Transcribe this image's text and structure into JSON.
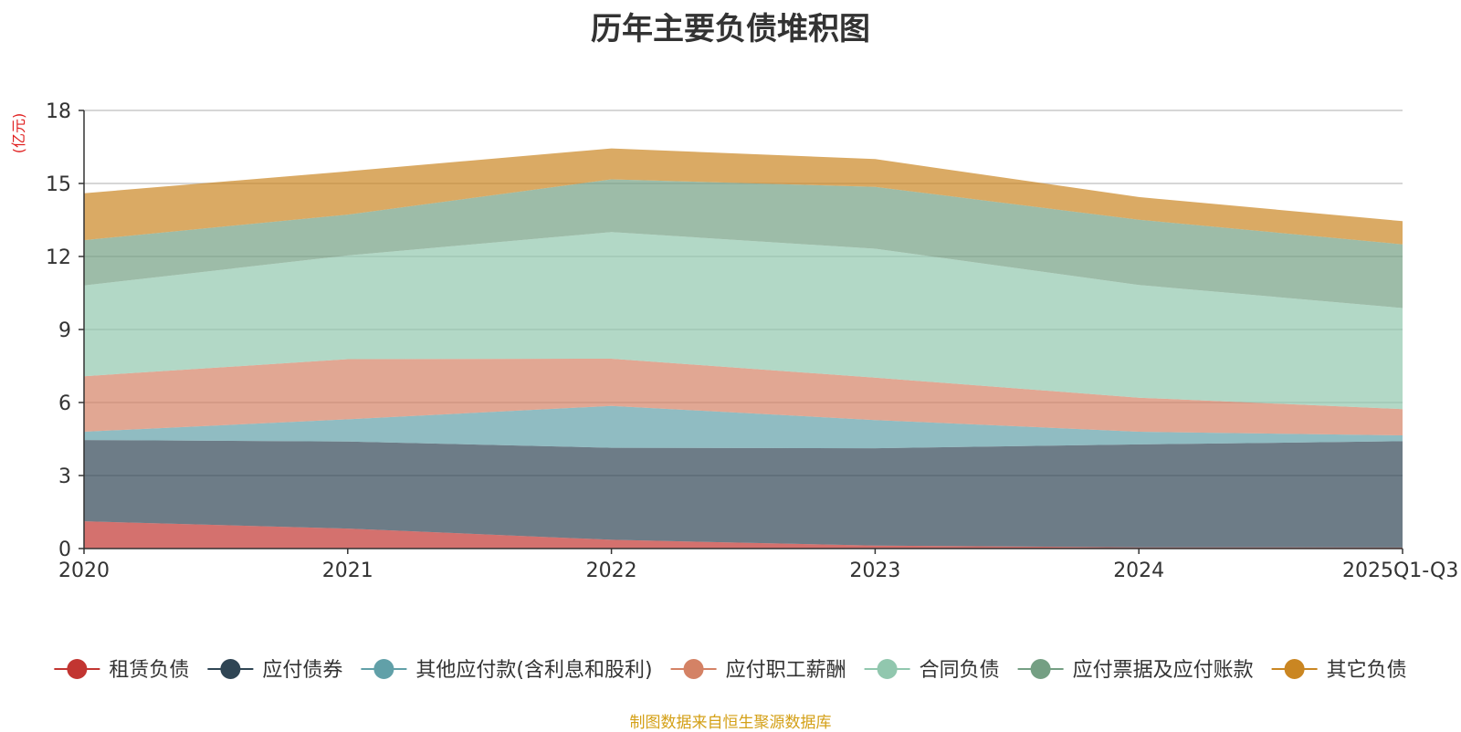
{
  "page": {
    "title": "历年主要负债堆积图",
    "source": "制图数据来自恒生聚源数据库"
  },
  "chart_data": {
    "type": "area",
    "stacked": true,
    "title": "历年主要负债堆积图",
    "unit": "(亿元)",
    "categories": [
      "2020",
      "2021",
      "2022",
      "2023",
      "2024",
      "2025Q1-Q3"
    ],
    "ylim": [
      0,
      18
    ],
    "yticks": [
      "0",
      "3",
      "6",
      "9",
      "12",
      "15",
      "18"
    ],
    "grid": true,
    "legend_position": "bottom",
    "series": [
      {
        "name": "租赁负债",
        "color": "#c23531",
        "values": [
          1.12,
          0.82,
          0.36,
          0.12,
          0.05,
          0.04
        ]
      },
      {
        "name": "应付债券",
        "color": "#2f4554",
        "values": [
          3.34,
          3.58,
          3.78,
          4.0,
          4.23,
          4.37
        ]
      },
      {
        "name": "其他应付款(含利息和股利)",
        "color": "#61a0a8",
        "values": [
          0.34,
          0.91,
          1.72,
          1.16,
          0.52,
          0.24
        ]
      },
      {
        "name": "应付职工薪酬",
        "color": "#d48265",
        "values": [
          2.28,
          2.47,
          1.94,
          1.74,
          1.4,
          1.08
        ]
      },
      {
        "name": "合同负债",
        "color": "#91c7ae",
        "values": [
          3.73,
          4.26,
          5.2,
          5.3,
          4.63,
          4.15
        ]
      },
      {
        "name": "应付票据及应付账款",
        "color": "#749f83",
        "values": [
          1.86,
          1.68,
          2.17,
          2.54,
          2.68,
          2.62
        ]
      },
      {
        "name": "其它负债",
        "color": "#ca8622",
        "values": [
          1.93,
          1.78,
          1.27,
          1.14,
          0.93,
          0.95
        ]
      }
    ]
  }
}
